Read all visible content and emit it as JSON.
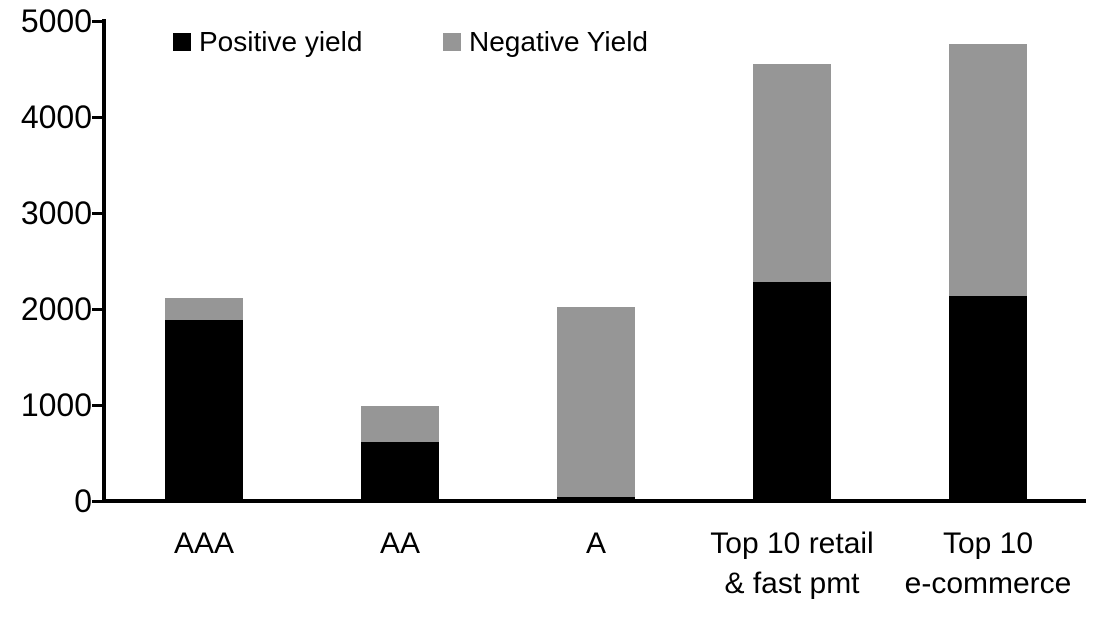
{
  "chart_data": {
    "type": "bar",
    "stacked": true,
    "title": "",
    "categories": [
      "AAA",
      "AA",
      "A",
      "Top 10 retail\n& fast pmt",
      "Top 10\ne-commerce"
    ],
    "series": [
      {
        "name": "Positive yield",
        "color": "#000000",
        "values": [
          1890,
          610,
          40,
          2280,
          2140
        ]
      },
      {
        "name": "Negative Yield",
        "color": "#969696",
        "values": [
          220,
          380,
          1980,
          2270,
          2620
        ]
      }
    ],
    "ylim": [
      0,
      5000
    ],
    "yticks": [
      0,
      1000,
      2000,
      3000,
      4000,
      5000
    ],
    "xlabel": "",
    "ylabel": "",
    "grid": false,
    "legend_position": "top-left",
    "axis_color": "#000000",
    "background": "#ffffff"
  }
}
